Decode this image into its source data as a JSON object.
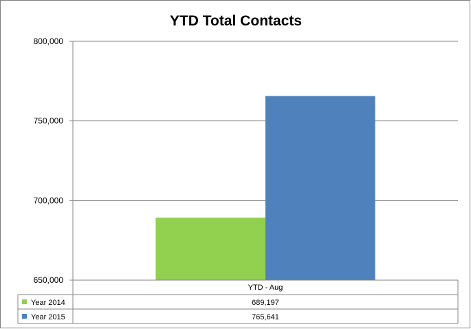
{
  "chart_data": {
    "type": "bar",
    "title": "YTD Total Contacts",
    "categories": [
      "YTD - Aug"
    ],
    "series": [
      {
        "name": "Year 2014",
        "color": "#92d050",
        "values": [
          689197
        ],
        "value_labels": [
          "689,197"
        ]
      },
      {
        "name": "Year 2015",
        "color": "#4f81bd",
        "values": [
          765641
        ],
        "value_labels": [
          "765,641"
        ]
      }
    ],
    "ylim": [
      650000,
      800000
    ],
    "yticks": [
      650000,
      700000,
      750000,
      800000
    ],
    "ytick_labels": [
      "650,000",
      "700,000",
      "750,000",
      "800,000"
    ],
    "grid": true,
    "legend": "data-table-below",
    "xlabel": "",
    "ylabel": ""
  }
}
